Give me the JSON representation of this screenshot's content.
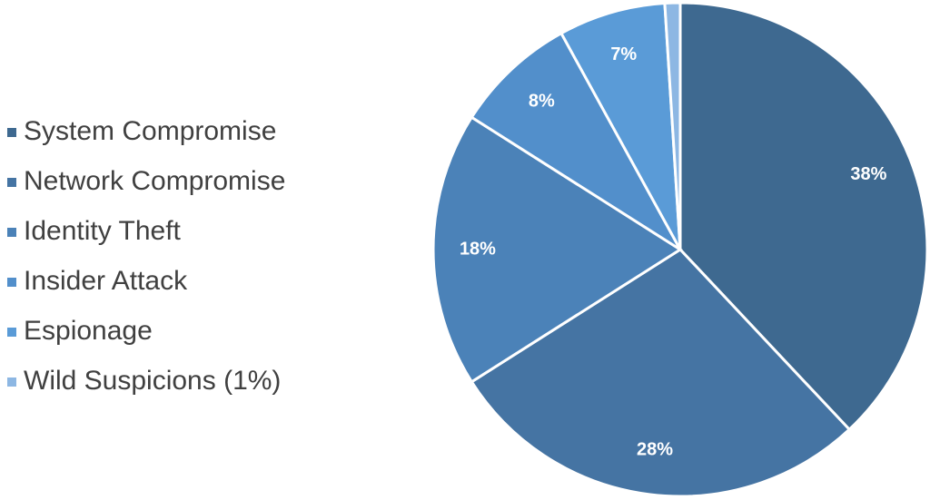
{
  "chart_data": {
    "type": "pie",
    "categories": [
      "System Compromise",
      "Network Compromise",
      "Identity Theft",
      "Insider Attack",
      "Espionage",
      "Wild Suspicions (1%)"
    ],
    "values": [
      38,
      28,
      18,
      8,
      7,
      1
    ],
    "value_labels": [
      "38%",
      "28%",
      "18%",
      "8%",
      "7%",
      null
    ],
    "colors": [
      "#3e6990",
      "#4574a3",
      "#4b82b8",
      "#528fcb",
      "#5a9bd7",
      "#8db7e3"
    ],
    "legend": "left"
  }
}
